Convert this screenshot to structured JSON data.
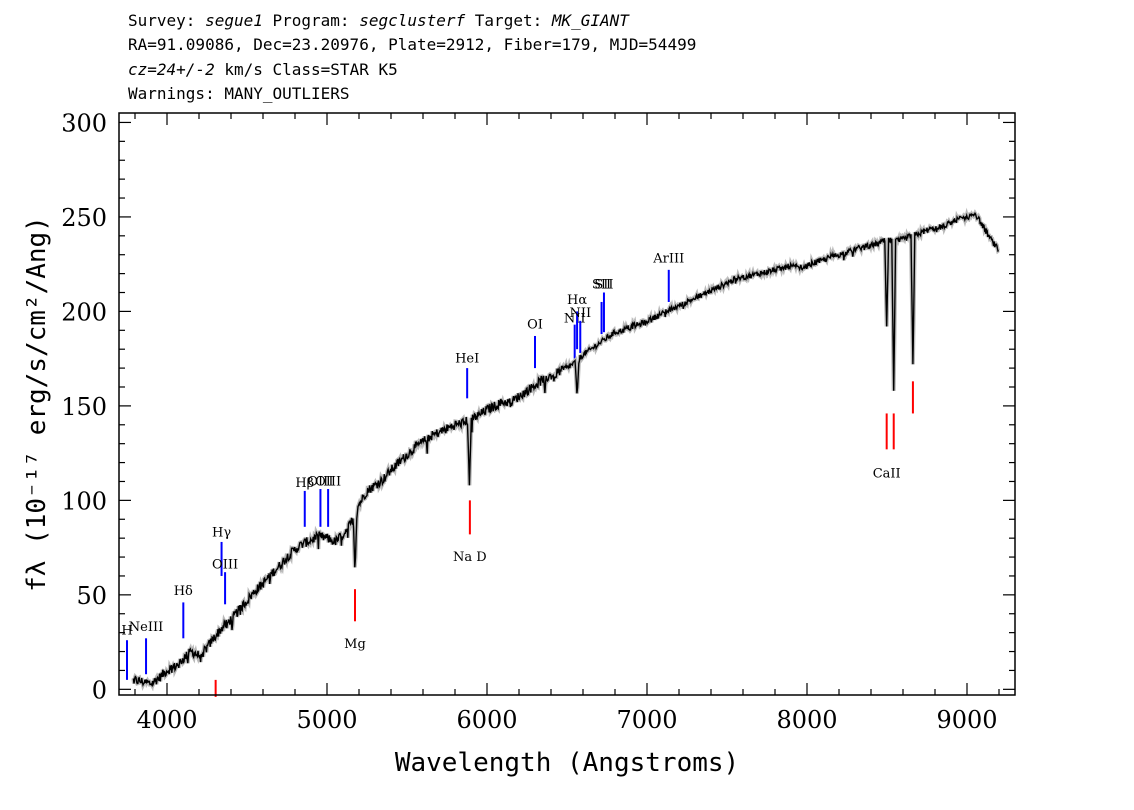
{
  "header": {
    "survey_key": "Survey: ",
    "survey": "segue1",
    "program_key": " Program: ",
    "program": "segclusterf",
    "target_key": " Target: ",
    "target": "MK_GIANT",
    "line2": "RA=91.09086, Dec=23.20976, Plate=2912, Fiber=179, MJD=54499",
    "cz": "cz=24+/-2",
    "cz_rest": " km/s Class=STAR K5",
    "warnings": "Warnings: MANY_OUTLIERS"
  },
  "chart_data": {
    "type": "line",
    "xlabel": "Wavelength (Angstroms)",
    "ylabel": "fλ (10⁻¹⁷ erg/s/cm²/Ang)",
    "xlim": [
      3700,
      9300
    ],
    "ylim": [
      -3,
      305
    ],
    "xticks": [
      4000,
      5000,
      6000,
      7000,
      8000,
      9000
    ],
    "yticks": [
      0,
      50,
      100,
      150,
      200,
      250,
      300
    ],
    "colors": {
      "spectrum": "#000000",
      "error": "#bbbbbb",
      "emission": "#0000ff",
      "absorption": "#ff0000"
    },
    "spectrum": {
      "x": [
        3790,
        3850,
        3900,
        3950,
        4000,
        4050,
        4100,
        4150,
        4200,
        4250,
        4300,
        4350,
        4400,
        4450,
        4500,
        4550,
        4600,
        4650,
        4700,
        4750,
        4800,
        4850,
        4900,
        4950,
        5000,
        5050,
        5100,
        5150,
        5200,
        5250,
        5300,
        5350,
        5400,
        5450,
        5500,
        5550,
        5600,
        5650,
        5700,
        5750,
        5800,
        5850,
        5900,
        5950,
        6000,
        6050,
        6100,
        6150,
        6200,
        6250,
        6300,
        6350,
        6400,
        6450,
        6500,
        6550,
        6600,
        6650,
        6700,
        6750,
        6800,
        6850,
        6900,
        6950,
        7000,
        7050,
        7100,
        7150,
        7200,
        7250,
        7300,
        7350,
        7400,
        7450,
        7500,
        7550,
        7600,
        7650,
        7700,
        7750,
        7800,
        7850,
        7900,
        7950,
        8000,
        8050,
        8100,
        8150,
        8200,
        8250,
        8300,
        8350,
        8400,
        8450,
        8500,
        8550,
        8600,
        8650,
        8700,
        8750,
        8800,
        8850,
        8900,
        8950,
        9000,
        9050,
        9100,
        9150,
        9200
      ],
      "y": [
        5,
        4,
        3,
        6,
        10,
        12,
        16,
        20,
        18,
        22,
        28,
        33,
        37,
        42,
        47,
        52,
        56,
        61,
        65,
        70,
        74,
        77,
        79,
        81,
        80,
        78,
        82,
        88,
        98,
        105,
        108,
        111,
        116,
        120,
        124,
        128,
        131,
        134,
        136,
        138,
        140,
        141,
        143,
        145,
        148,
        150,
        152,
        152,
        155,
        158,
        161,
        164,
        166,
        168,
        170,
        173,
        177,
        180,
        183,
        186,
        189,
        190,
        192,
        193,
        195,
        197,
        199,
        201,
        203,
        205,
        207,
        209,
        211,
        213,
        215,
        217,
        218,
        219,
        220,
        221,
        222,
        223,
        224,
        223,
        224,
        226,
        227,
        229,
        230,
        231,
        233,
        234,
        235,
        236,
        238,
        237,
        238,
        240,
        241,
        243,
        244,
        245,
        247,
        249,
        250,
        252,
        245,
        238,
        232
      ]
    },
    "absorption_dips": [
      {
        "x": 5175,
        "y": 62
      },
      {
        "x": 5890,
        "y": 108
      },
      {
        "x": 6563,
        "y": 155
      },
      {
        "x": 8498,
        "y": 192
      },
      {
        "x": 8542,
        "y": 158
      },
      {
        "x": 8662,
        "y": 172
      }
    ],
    "lines": [
      {
        "label": "H",
        "x": 3750,
        "color": "blue",
        "y0": 5,
        "y1": 26,
        "ly": 29
      },
      {
        "label": "NeIII",
        "x": 3869,
        "color": "blue",
        "y0": 8,
        "y1": 27,
        "ly": 31
      },
      {
        "label": "Hδ",
        "x": 4102,
        "color": "blue",
        "y0": 27,
        "y1": 46,
        "ly": 50
      },
      {
        "label": "Hγ",
        "x": 4341,
        "color": "blue",
        "y0": 60,
        "y1": 78,
        "ly": 81
      },
      {
        "label": "OIII",
        "x": 4363,
        "color": "blue",
        "y0": 45,
        "y1": 62,
        "ly": 64
      },
      {
        "label": "Hβ",
        "x": 4861,
        "color": "blue",
        "y0": 86,
        "y1": 105,
        "ly": 107
      },
      {
        "label": "OIII",
        "x": 4959,
        "color": "blue",
        "y0": 86,
        "y1": 106,
        "ly": 108
      },
      {
        "label": "OIII",
        "x": 5007,
        "color": "blue",
        "y0": 86,
        "y1": 106,
        "ly": 108
      },
      {
        "label": "HeI",
        "x": 5876,
        "color": "blue",
        "y0": 154,
        "y1": 170,
        "ly": 173
      },
      {
        "label": "OI",
        "x": 6300,
        "color": "blue",
        "y0": 170,
        "y1": 187,
        "ly": 191
      },
      {
        "label": "NII",
        "x": 6548,
        "color": "blue",
        "y0": 175,
        "y1": 193,
        "ly": 194
      },
      {
        "label": "Hα",
        "x": 6563,
        "color": "blue",
        "y0": 180,
        "y1": 200,
        "ly": 204
      },
      {
        "label": "NII",
        "x": 6583,
        "color": "blue",
        "y0": 178,
        "y1": 195,
        "ly": 197
      },
      {
        "label": "SII",
        "x": 6716,
        "color": "blue",
        "y0": 188,
        "y1": 205,
        "ly": 212
      },
      {
        "label": "SII",
        "x": 6731,
        "color": "blue",
        "y0": 189,
        "y1": 210,
        "ly": 212
      },
      {
        "label": "ArIII",
        "x": 7136,
        "color": "blue",
        "y0": 205,
        "y1": 222,
        "ly": 226
      },
      {
        "label": "",
        "x": 4304,
        "color": "red",
        "y0": -4,
        "y1": 5,
        "ly": 0
      },
      {
        "label": "Mg",
        "x": 5175,
        "color": "red",
        "y0": 36,
        "y1": 53,
        "ly": 22
      },
      {
        "label": "Na D",
        "x": 5893,
        "color": "red",
        "y0": 82,
        "y1": 100,
        "ly": 68
      },
      {
        "label": "CaII",
        "x": 8498,
        "color": "red",
        "y0": 127,
        "y1": 146,
        "ly": 112
      },
      {
        "label": "",
        "x": 8542,
        "color": "red",
        "y0": 127,
        "y1": 146,
        "ly": 112
      },
      {
        "label": "",
        "x": 8662,
        "color": "red",
        "y0": 146,
        "y1": 163,
        "ly": 112
      }
    ]
  }
}
